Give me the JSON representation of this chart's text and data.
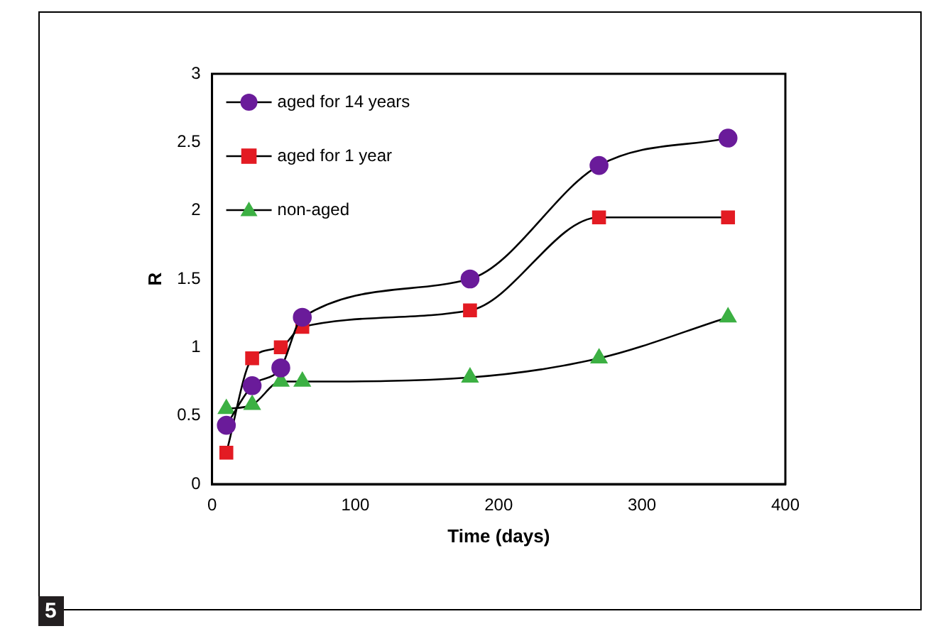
{
  "chart_data": {
    "type": "line",
    "xlabel": "Time (days)",
    "ylabel": "R",
    "annotations": [
      "5"
    ],
    "xlim": [
      0,
      400
    ],
    "xticks": [
      0,
      100,
      200,
      300,
      400
    ],
    "ylim": [
      0,
      3
    ],
    "yticks": [
      0,
      0.5,
      1,
      1.5,
      2,
      2.5,
      3
    ],
    "grid": false,
    "legend": "top left",
    "line_style": "solid",
    "x": [
      10,
      28,
      48,
      63,
      180,
      270,
      360
    ],
    "series": [
      {
        "name": "aged for 14 years",
        "color": "#6a1b9a",
        "marker": "circle",
        "values": [
          0.43,
          0.72,
          0.85,
          1.22,
          1.5,
          2.33,
          2.53
        ]
      },
      {
        "name": "aged for 1 year",
        "color": "#e31b23",
        "marker": "square",
        "values": [
          0.23,
          0.92,
          1.0,
          1.15,
          1.27,
          1.95,
          1.95
        ]
      },
      {
        "name": "non-aged",
        "color": "#3cb043",
        "marker": "triangle",
        "values": [
          0.55,
          0.58,
          0.75,
          0.75,
          0.78,
          0.92,
          1.22
        ]
      }
    ]
  }
}
